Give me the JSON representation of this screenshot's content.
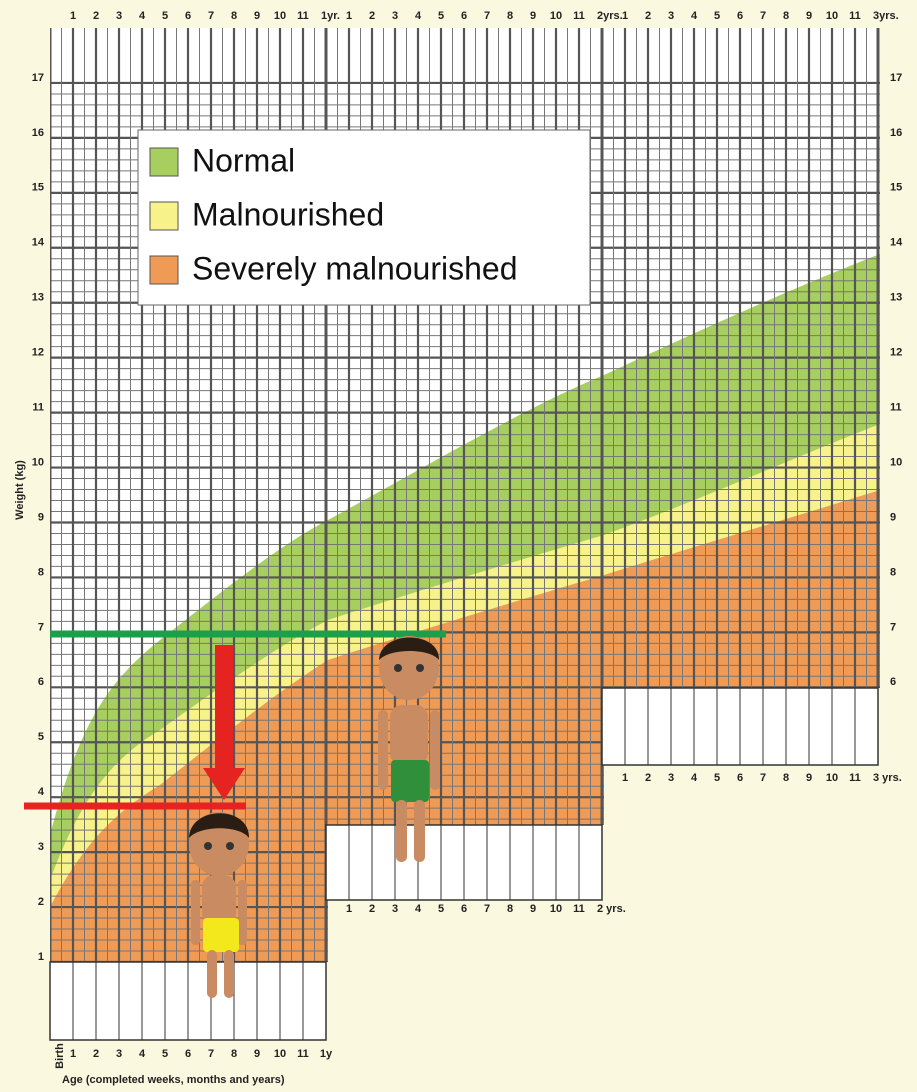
{
  "top_axis": {
    "labels": [
      "1",
      "2",
      "3",
      "4",
      "5",
      "6",
      "7",
      "8",
      "9",
      "10",
      "11",
      "1yr.",
      "1",
      "2",
      "3",
      "4",
      "5",
      "6",
      "7",
      "8",
      "9",
      "10",
      "11",
      "2yrs.",
      "1",
      "2",
      "3",
      "4",
      "5",
      "6",
      "7",
      "8",
      "9",
      "10",
      "11",
      "3yrs."
    ]
  },
  "left_axis": {
    "title": "Weight (kg)",
    "labels": [
      "1",
      "2",
      "3",
      "4",
      "5",
      "6",
      "7",
      "8",
      "9",
      "10",
      "11",
      "12",
      "13",
      "14",
      "15",
      "16",
      "17"
    ]
  },
  "right_axis": {
    "labels": [
      "6",
      "7",
      "8",
      "9",
      "10",
      "11",
      "12",
      "13",
      "14",
      "15",
      "16",
      "17"
    ]
  },
  "bottom_axis": {
    "title": "Age (completed weeks, months and years)",
    "year1": [
      "Birth",
      "1",
      "2",
      "3",
      "4",
      "5",
      "6",
      "7",
      "8",
      "9",
      "10",
      "11",
      "1y"
    ],
    "year2": [
      "1",
      "2",
      "3",
      "4",
      "5",
      "6",
      "7",
      "8",
      "9",
      "10",
      "11",
      "2 yrs."
    ],
    "year3": [
      "1",
      "2",
      "3",
      "4",
      "5",
      "6",
      "7",
      "8",
      "9",
      "10",
      "11",
      "3 yrs."
    ]
  },
  "legend": [
    {
      "label": "Normal",
      "color": "#a6cf5f"
    },
    {
      "label": "Malnourished",
      "color": "#f8f28a"
    },
    {
      "label": "Severely malnourished",
      "color": "#ef9a55"
    }
  ]
}
